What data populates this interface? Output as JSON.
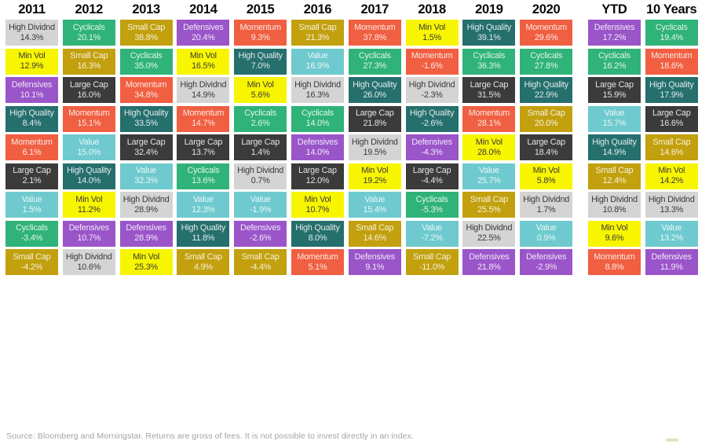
{
  "footer": {
    "source_note": "Source: Bloomberg and Morningstar. Returns are gross of fees. It is not possible to invest directly in an index."
  },
  "palette": {
    "High Dividnd": {
      "bg": "#d4d4d4",
      "text": "dark"
    },
    "Min Vol": {
      "bg": "#f8f500",
      "text": "dark"
    },
    "Defensives": {
      "bg": "#9a55c9",
      "text": "light"
    },
    "High Quality": {
      "bg": "#256f6d",
      "text": "light"
    },
    "Momentum": {
      "bg": "#f05f41",
      "text": "light"
    },
    "Large Cap": {
      "bg": "#3b3b3b",
      "text": "light"
    },
    "Value": {
      "bg": "#6ecace",
      "text": "light"
    },
    "Cyclicals": {
      "bg": "#2fb378",
      "text": "light"
    },
    "Small Cap": {
      "bg": "#c2a00e",
      "text": "light"
    }
  },
  "chart_data": {
    "type": "table",
    "description": "Periodic table of factor index annual returns ranked best-to-worst per year",
    "legend_position": "none",
    "grid": false,
    "columns": [
      {
        "label": "2011",
        "cells": [
          {
            "name": "High Dividnd",
            "value": "14.3%"
          },
          {
            "name": "Min Vol",
            "value": "12.9%"
          },
          {
            "name": "Defensives",
            "value": "10.1%"
          },
          {
            "name": "High Quality",
            "value": "8.4%"
          },
          {
            "name": "Momentum",
            "value": "6.1%"
          },
          {
            "name": "Large Cap",
            "value": "2.1%"
          },
          {
            "name": "Value",
            "value": "1.5%"
          },
          {
            "name": "Cyclicals",
            "value": "-3.4%"
          },
          {
            "name": "Small Cap",
            "value": "-4.2%"
          }
        ]
      },
      {
        "label": "2012",
        "cells": [
          {
            "name": "Cyclicals",
            "value": "20.1%"
          },
          {
            "name": "Small Cap",
            "value": "16.3%"
          },
          {
            "name": "Large Cap",
            "value": "16.0%"
          },
          {
            "name": "Momentum",
            "value": "15.1%"
          },
          {
            "name": "Value",
            "value": "15.0%"
          },
          {
            "name": "High Quality",
            "value": "14.0%"
          },
          {
            "name": "Min Vol",
            "value": "11.2%"
          },
          {
            "name": "Defensives",
            "value": "10.7%"
          },
          {
            "name": "High Dividnd",
            "value": "10.6%"
          }
        ]
      },
      {
        "label": "2013",
        "cells": [
          {
            "name": "Small Cap",
            "value": "38.8%"
          },
          {
            "name": "Cyclicals",
            "value": "35.0%"
          },
          {
            "name": "Momentum",
            "value": "34.8%"
          },
          {
            "name": "High Quality",
            "value": "33.5%"
          },
          {
            "name": "Large Cap",
            "value": "32.4%"
          },
          {
            "name": "Value",
            "value": "32.3%"
          },
          {
            "name": "High Dividnd",
            "value": "28.9%"
          },
          {
            "name": "Defensives",
            "value": "28.9%"
          },
          {
            "name": "Min Vol",
            "value": "25.3%"
          }
        ]
      },
      {
        "label": "2014",
        "cells": [
          {
            "name": "Defensives",
            "value": "20.4%"
          },
          {
            "name": "Min Vol",
            "value": "16.5%"
          },
          {
            "name": "High Dividnd",
            "value": "14.9%"
          },
          {
            "name": "Momentum",
            "value": "14.7%"
          },
          {
            "name": "Large Cap",
            "value": "13.7%"
          },
          {
            "name": "Cyclicals",
            "value": "13.6%"
          },
          {
            "name": "Value",
            "value": "12.3%"
          },
          {
            "name": "High Quality",
            "value": "11.8%"
          },
          {
            "name": "Small Cap",
            "value": "4.9%"
          }
        ]
      },
      {
        "label": "2015",
        "cells": [
          {
            "name": "Momentum",
            "value": "9.3%"
          },
          {
            "name": "High Quality",
            "value": "7.0%"
          },
          {
            "name": "Min Vol",
            "value": "5.6%"
          },
          {
            "name": "Cyclicals",
            "value": "2.6%"
          },
          {
            "name": "Large Cap",
            "value": "1.4%"
          },
          {
            "name": "High Dividnd",
            "value": "0.7%"
          },
          {
            "name": "Value",
            "value": "-1.9%"
          },
          {
            "name": "Defensives",
            "value": "-2.6%"
          },
          {
            "name": "Small Cap",
            "value": "-4.4%"
          }
        ]
      },
      {
        "label": "2016",
        "cells": [
          {
            "name": "Small Cap",
            "value": "21.3%"
          },
          {
            "name": "Value",
            "value": "16.9%"
          },
          {
            "name": "High Dividnd",
            "value": "16.3%"
          },
          {
            "name": "Cyclicals",
            "value": "14.0%"
          },
          {
            "name": "Defensives",
            "value": "14.0%"
          },
          {
            "name": "Large Cap",
            "value": "12.0%"
          },
          {
            "name": "Min Vol",
            "value": "10.7%"
          },
          {
            "name": "High Quality",
            "value": "8.0%"
          },
          {
            "name": "Momentum",
            "value": "5.1%"
          }
        ]
      },
      {
        "label": "2017",
        "cells": [
          {
            "name": "Momentum",
            "value": "37.8%"
          },
          {
            "name": "Cyclicals",
            "value": "27.3%"
          },
          {
            "name": "High Quality",
            "value": "26.0%"
          },
          {
            "name": "Large Cap",
            "value": "21.8%"
          },
          {
            "name": "High Dividnd",
            "value": "19.5%"
          },
          {
            "name": "Min Vol",
            "value": "19.2%"
          },
          {
            "name": "Value",
            "value": "15.4%"
          },
          {
            "name": "Small Cap",
            "value": "14.6%"
          },
          {
            "name": "Defensives",
            "value": "9.1%"
          }
        ]
      },
      {
        "label": "2018",
        "cells": [
          {
            "name": "Min Vol",
            "value": "1.5%"
          },
          {
            "name": "Momentum",
            "value": "-1.6%"
          },
          {
            "name": "High Dividnd",
            "value": "-2.3%"
          },
          {
            "name": "High Quality",
            "value": "-2.6%"
          },
          {
            "name": "Defensives",
            "value": "-4.3%"
          },
          {
            "name": "Large Cap",
            "value": "-4.4%"
          },
          {
            "name": "Cyclicals",
            "value": "-5.3%"
          },
          {
            "name": "Value",
            "value": "-7.2%"
          },
          {
            "name": "Small Cap",
            "value": "-11.0%"
          }
        ]
      },
      {
        "label": "2019",
        "cells": [
          {
            "name": "High Quality",
            "value": "39.1%"
          },
          {
            "name": "Cyclicals",
            "value": "36.3%"
          },
          {
            "name": "Large Cap",
            "value": "31.5%"
          },
          {
            "name": "Momentum",
            "value": "28.1%"
          },
          {
            "name": "Min Vol",
            "value": "28.0%"
          },
          {
            "name": "Value",
            "value": "25.7%"
          },
          {
            "name": "Small Cap",
            "value": "25.5%"
          },
          {
            "name": "High Dividnd",
            "value": "22.5%"
          },
          {
            "name": "Defensives",
            "value": "21.8%"
          }
        ]
      },
      {
        "label": "2020",
        "cells": [
          {
            "name": "Momentum",
            "value": "29.6%"
          },
          {
            "name": "Cyclicals",
            "value": "27.8%"
          },
          {
            "name": "High Quality",
            "value": "22.9%"
          },
          {
            "name": "Small Cap",
            "value": "20.0%"
          },
          {
            "name": "Large Cap",
            "value": "18.4%"
          },
          {
            "name": "Min Vol",
            "value": "5.8%"
          },
          {
            "name": "High Dividnd",
            "value": "1.7%"
          },
          {
            "name": "Value",
            "value": "0.9%"
          },
          {
            "name": "Defensives",
            "value": "-2.9%"
          }
        ]
      },
      {
        "label": "YTD",
        "gap_before": true,
        "cells": [
          {
            "name": "Defensives",
            "value": "17.2%"
          },
          {
            "name": "Cyclicals",
            "value": "16.2%"
          },
          {
            "name": "Large Cap",
            "value": "15.9%"
          },
          {
            "name": "Value",
            "value": "15.7%"
          },
          {
            "name": "High Quality",
            "value": "14.9%"
          },
          {
            "name": "Small Cap",
            "value": "12.4%"
          },
          {
            "name": "High Dividnd",
            "value": "10.8%"
          },
          {
            "name": "Min Vol",
            "value": "9.6%"
          },
          {
            "name": "Momentum",
            "value": "8.8%"
          }
        ]
      },
      {
        "label": "10 Years",
        "cells": [
          {
            "name": "Cyclicals",
            "value": "19.4%"
          },
          {
            "name": "Momentum",
            "value": "18.6%"
          },
          {
            "name": "High Quality",
            "value": "17.9%"
          },
          {
            "name": "Large Cap",
            "value": "16.6%"
          },
          {
            "name": "Small Cap",
            "value": "14.6%"
          },
          {
            "name": "Min Vol",
            "value": "14.2%"
          },
          {
            "name": "High Dividnd",
            "value": "13.3%"
          },
          {
            "name": "Value",
            "value": "13.2%"
          },
          {
            "name": "Defensives",
            "value": "11.9%"
          }
        ]
      }
    ]
  }
}
